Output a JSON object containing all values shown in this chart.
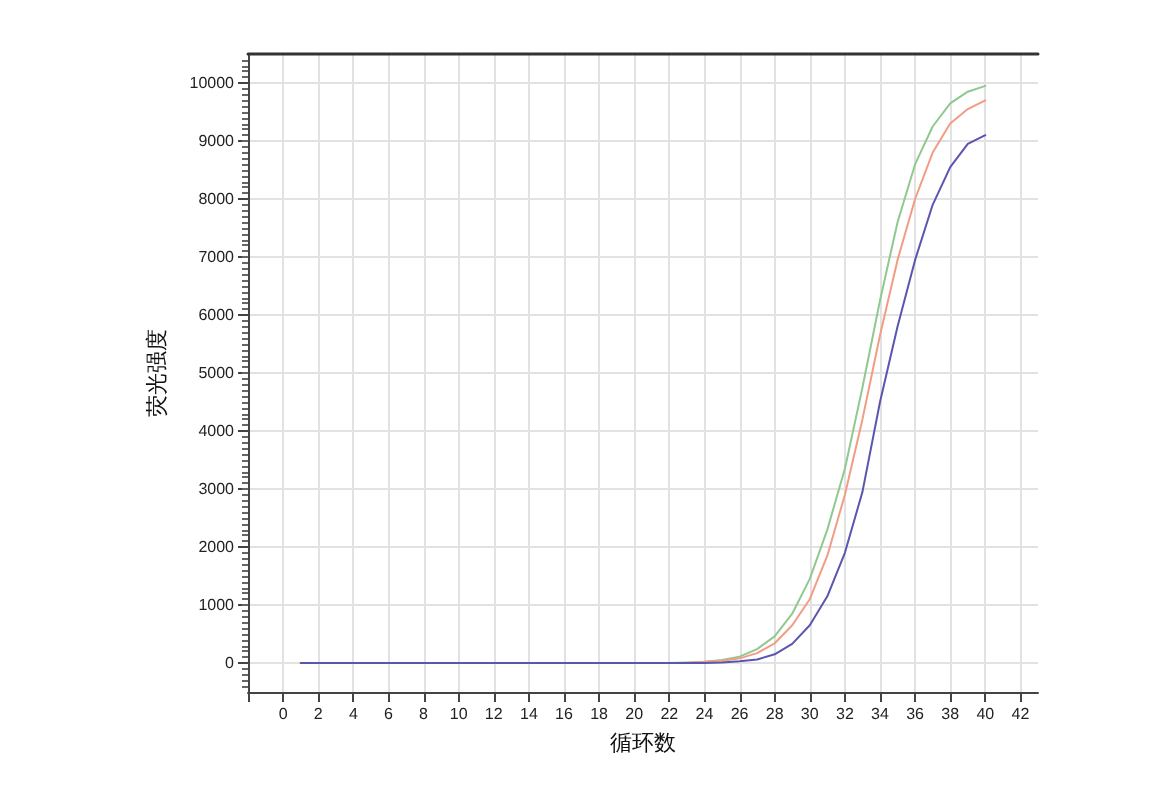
{
  "chart_data": {
    "type": "line",
    "xlabel": "循环数",
    "ylabel": "荧光强度",
    "x": [
      1,
      2,
      3,
      4,
      5,
      6,
      7,
      8,
      9,
      10,
      11,
      12,
      13,
      14,
      15,
      16,
      17,
      18,
      19,
      20,
      21,
      22,
      23,
      24,
      25,
      26,
      27,
      28,
      29,
      30,
      31,
      32,
      33,
      34,
      35,
      36,
      37,
      38,
      39,
      40
    ],
    "series": [
      {
        "color": "#8fc98f",
        "values": [
          null,
          null,
          null,
          null,
          null,
          null,
          null,
          null,
          null,
          null,
          null,
          null,
          null,
          null,
          null,
          null,
          null,
          null,
          null,
          null,
          null,
          0,
          10,
          20,
          50,
          110,
          240,
          460,
          850,
          1450,
          2300,
          3350,
          4750,
          6250,
          7600,
          8600,
          9250,
          9650,
          9850,
          9950
        ]
      },
      {
        "color": "#f29c84",
        "values": [
          null,
          null,
          null,
          null,
          null,
          null,
          null,
          null,
          null,
          null,
          null,
          null,
          null,
          null,
          null,
          null,
          null,
          null,
          null,
          null,
          null,
          null,
          0,
          20,
          40,
          80,
          170,
          340,
          650,
          1100,
          1850,
          2900,
          4200,
          5650,
          6950,
          8000,
          8800,
          9300,
          9550,
          9700
        ]
      },
      {
        "color": "#5a55b0",
        "values": [
          0,
          0,
          0,
          0,
          0,
          0,
          0,
          0,
          0,
          0,
          0,
          0,
          0,
          0,
          0,
          0,
          0,
          0,
          0,
          0,
          0,
          0,
          0,
          0,
          10,
          30,
          60,
          150,
          330,
          650,
          1150,
          1900,
          2950,
          4500,
          5800,
          6950,
          7900,
          8550,
          8950,
          9100
        ]
      }
    ],
    "xlim": [
      -2,
      43
    ],
    "xticks": [
      {
        "value": -2,
        "label": null
      },
      0,
      2,
      4,
      6,
      8,
      10,
      12,
      14,
      16,
      18,
      20,
      22,
      24,
      26,
      28,
      30,
      32,
      34,
      36,
      38,
      40,
      42
    ],
    "ylim": [
      -500,
      10500
    ],
    "yticks": [
      0,
      1000,
      2000,
      3000,
      4000,
      5000,
      6000,
      7000,
      8000,
      9000,
      10000
    ],
    "grid": true,
    "marker": "none",
    "line_style": "solid"
  }
}
